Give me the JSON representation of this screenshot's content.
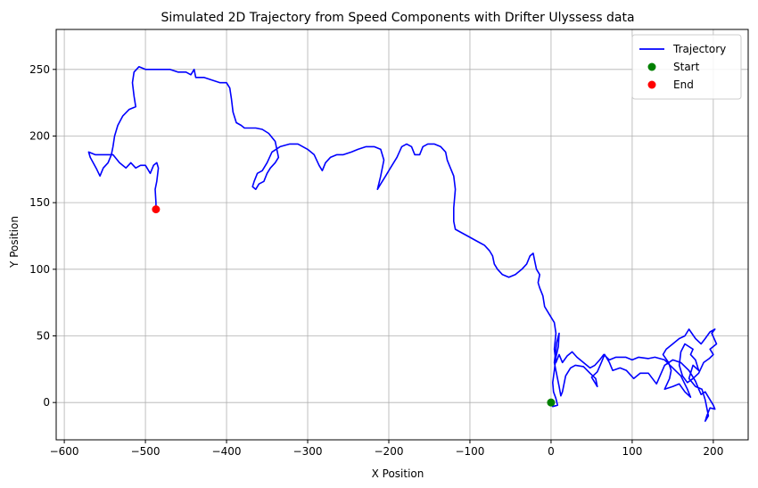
{
  "chart_data": {
    "type": "line",
    "title": "Simulated 2D Trajectory from Speed Components with Drifter Ulyssess data",
    "xlabel": "X Position",
    "ylabel": "Y Position",
    "xlim": [
      -610,
      243
    ],
    "ylim": [
      -28,
      280
    ],
    "xticks": [
      -600,
      -500,
      -400,
      -300,
      -200,
      -100,
      0,
      100,
      200
    ],
    "yticks": [
      0,
      50,
      100,
      150,
      200,
      250
    ],
    "grid": true,
    "legend_position": "top-right",
    "colors": {
      "trajectory": "#0000ff",
      "start": "#008000",
      "end": "#ff0000",
      "grid": "#b0b0b0"
    },
    "series": [
      {
        "name": "Trajectory",
        "kind": "line",
        "points": [
          [
            0,
            0
          ],
          [
            2,
            -3
          ],
          [
            8,
            -2
          ],
          [
            6,
            3
          ],
          [
            3,
            8
          ],
          [
            2,
            15
          ],
          [
            4,
            24
          ],
          [
            6,
            34
          ],
          [
            9,
            42
          ],
          [
            10,
            52
          ],
          [
            7,
            45
          ],
          [
            4,
            30
          ],
          [
            8,
            18
          ],
          [
            10,
            12
          ],
          [
            12,
            5
          ],
          [
            14,
            8
          ],
          [
            18,
            20
          ],
          [
            24,
            26
          ],
          [
            30,
            28
          ],
          [
            40,
            27
          ],
          [
            48,
            22
          ],
          [
            55,
            18
          ],
          [
            57,
            12
          ],
          [
            50,
            19
          ],
          [
            57,
            23
          ],
          [
            62,
            30
          ],
          [
            66,
            36
          ],
          [
            72,
            30
          ],
          [
            76,
            24
          ],
          [
            85,
            26
          ],
          [
            93,
            24
          ],
          [
            102,
            18
          ],
          [
            110,
            22
          ],
          [
            120,
            22
          ],
          [
            130,
            14
          ],
          [
            140,
            28
          ],
          [
            150,
            32
          ],
          [
            160,
            30
          ],
          [
            170,
            24
          ],
          [
            178,
            16
          ],
          [
            182,
            10
          ],
          [
            185,
            6
          ],
          [
            190,
            8
          ],
          [
            200,
            -2
          ],
          [
            202,
            -5
          ],
          [
            196,
            -4
          ],
          [
            192,
            -10
          ],
          [
            190,
            -14
          ],
          [
            194,
            -10
          ],
          [
            190,
            2
          ],
          [
            186,
            10
          ],
          [
            178,
            12
          ],
          [
            170,
            18
          ],
          [
            175,
            28
          ],
          [
            182,
            24
          ],
          [
            178,
            32
          ],
          [
            172,
            36
          ],
          [
            175,
            40
          ],
          [
            165,
            44
          ],
          [
            160,
            38
          ],
          [
            158,
            28
          ],
          [
            162,
            20
          ],
          [
            168,
            15
          ],
          [
            175,
            18
          ],
          [
            182,
            22
          ],
          [
            188,
            30
          ],
          [
            195,
            33
          ],
          [
            200,
            36
          ],
          [
            196,
            40
          ],
          [
            204,
            44
          ],
          [
            198,
            52
          ],
          [
            202,
            55
          ],
          [
            196,
            53
          ],
          [
            190,
            48
          ],
          [
            185,
            44
          ],
          [
            178,
            48
          ],
          [
            170,
            55
          ],
          [
            165,
            50
          ],
          [
            158,
            48
          ],
          [
            150,
            44
          ],
          [
            142,
            40
          ],
          [
            138,
            36
          ],
          [
            145,
            30
          ],
          [
            148,
            24
          ],
          [
            146,
            18
          ],
          [
            140,
            10
          ],
          [
            150,
            12
          ],
          [
            158,
            14
          ],
          [
            165,
            8
          ],
          [
            172,
            4
          ],
          [
            168,
            10
          ],
          [
            160,
            20
          ],
          [
            150,
            26
          ],
          [
            140,
            32
          ],
          [
            128,
            34
          ],
          [
            120,
            33
          ],
          [
            108,
            34
          ],
          [
            100,
            32
          ],
          [
            92,
            34
          ],
          [
            80,
            34
          ],
          [
            72,
            32
          ],
          [
            65,
            36
          ],
          [
            60,
            32
          ],
          [
            54,
            28
          ],
          [
            48,
            26
          ],
          [
            40,
            30
          ],
          [
            32,
            34
          ],
          [
            26,
            38
          ],
          [
            20,
            35
          ],
          [
            14,
            30
          ],
          [
            10,
            36
          ],
          [
            6,
            30
          ],
          [
            4,
            40
          ],
          [
            6,
            52
          ],
          [
            4,
            60
          ],
          [
            -2,
            66
          ],
          [
            -8,
            72
          ],
          [
            -10,
            80
          ],
          [
            -14,
            86
          ],
          [
            -16,
            90
          ],
          [
            -14,
            96
          ],
          [
            -18,
            100
          ],
          [
            -20,
            106
          ],
          [
            -22,
            112
          ],
          [
            -26,
            110
          ],
          [
            -30,
            104
          ],
          [
            -36,
            100
          ],
          [
            -44,
            96
          ],
          [
            -52,
            94
          ],
          [
            -60,
            96
          ],
          [
            -66,
            100
          ],
          [
            -70,
            104
          ],
          [
            -72,
            110
          ],
          [
            -76,
            114
          ],
          [
            -82,
            118
          ],
          [
            -88,
            120
          ],
          [
            -94,
            122
          ],
          [
            -100,
            124
          ],
          [
            -106,
            126
          ],
          [
            -112,
            128
          ],
          [
            -118,
            130
          ],
          [
            -120,
            136
          ],
          [
            -120,
            146
          ],
          [
            -118,
            160
          ],
          [
            -120,
            170
          ],
          [
            -124,
            176
          ],
          [
            -128,
            182
          ],
          [
            -130,
            188
          ],
          [
            -136,
            192
          ],
          [
            -144,
            194
          ],
          [
            -152,
            194
          ],
          [
            -158,
            192
          ],
          [
            -162,
            186
          ],
          [
            -168,
            186
          ],
          [
            -172,
            192
          ],
          [
            -178,
            194
          ],
          [
            -184,
            192
          ],
          [
            -190,
            184
          ],
          [
            -194,
            180
          ],
          [
            -198,
            176
          ],
          [
            -204,
            170
          ],
          [
            -210,
            164
          ],
          [
            -214,
            160
          ],
          [
            -210,
            170
          ],
          [
            -206,
            182
          ],
          [
            -210,
            190
          ],
          [
            -218,
            192
          ],
          [
            -228,
            192
          ],
          [
            -238,
            190
          ],
          [
            -246,
            188
          ],
          [
            -256,
            186
          ],
          [
            -264,
            186
          ],
          [
            -272,
            184
          ],
          [
            -278,
            180
          ],
          [
            -282,
            174
          ],
          [
            -286,
            178
          ],
          [
            -292,
            186
          ],
          [
            -300,
            190
          ],
          [
            -312,
            194
          ],
          [
            -322,
            194
          ],
          [
            -334,
            192
          ],
          [
            -344,
            188
          ],
          [
            -350,
            180
          ],
          [
            -356,
            174
          ],
          [
            -362,
            172
          ],
          [
            -366,
            166
          ],
          [
            -368,
            162
          ],
          [
            -364,
            160
          ],
          [
            -360,
            164
          ],
          [
            -354,
            166
          ],
          [
            -350,
            172
          ],
          [
            -346,
            176
          ],
          [
            -340,
            180
          ],
          [
            -336,
            184
          ],
          [
            -340,
            196
          ],
          [
            -348,
            202
          ],
          [
            -356,
            205
          ],
          [
            -364,
            206
          ],
          [
            -372,
            206
          ],
          [
            -378,
            206
          ],
          [
            -382,
            208
          ],
          [
            -388,
            210
          ],
          [
            -392,
            218
          ],
          [
            -394,
            228
          ],
          [
            -396,
            236
          ],
          [
            -400,
            240
          ],
          [
            -408,
            240
          ],
          [
            -418,
            242
          ],
          [
            -428,
            244
          ],
          [
            -438,
            244
          ],
          [
            -440,
            250
          ],
          [
            -444,
            246
          ],
          [
            -450,
            248
          ],
          [
            -460,
            248
          ],
          [
            -470,
            250
          ],
          [
            -480,
            250
          ],
          [
            -490,
            250
          ],
          [
            -500,
            250
          ],
          [
            -508,
            252
          ],
          [
            -514,
            248
          ],
          [
            -516,
            240
          ],
          [
            -514,
            230
          ],
          [
            -512,
            222
          ],
          [
            -520,
            220
          ],
          [
            -528,
            215
          ],
          [
            -534,
            208
          ],
          [
            -538,
            200
          ],
          [
            -540,
            192
          ],
          [
            -542,
            186
          ],
          [
            -546,
            180
          ],
          [
            -552,
            176
          ],
          [
            -556,
            170
          ],
          [
            -560,
            175
          ],
          [
            -568,
            184
          ],
          [
            -570,
            188
          ],
          [
            -562,
            186
          ],
          [
            -552,
            186
          ],
          [
            -540,
            186
          ],
          [
            -532,
            180
          ],
          [
            -524,
            176
          ],
          [
            -518,
            180
          ],
          [
            -512,
            176
          ],
          [
            -506,
            178
          ],
          [
            -500,
            178
          ],
          [
            -494,
            172
          ],
          [
            -490,
            178
          ],
          [
            -486,
            180
          ],
          [
            -484,
            176
          ],
          [
            -486,
            166
          ],
          [
            -488,
            160
          ],
          [
            -487,
            150
          ],
          [
            -487,
            145
          ]
        ]
      },
      {
        "name": "Start",
        "kind": "scatter",
        "points": [
          [
            0,
            0
          ]
        ]
      },
      {
        "name": "End",
        "kind": "scatter",
        "points": [
          [
            -487,
            145
          ]
        ]
      }
    ]
  }
}
